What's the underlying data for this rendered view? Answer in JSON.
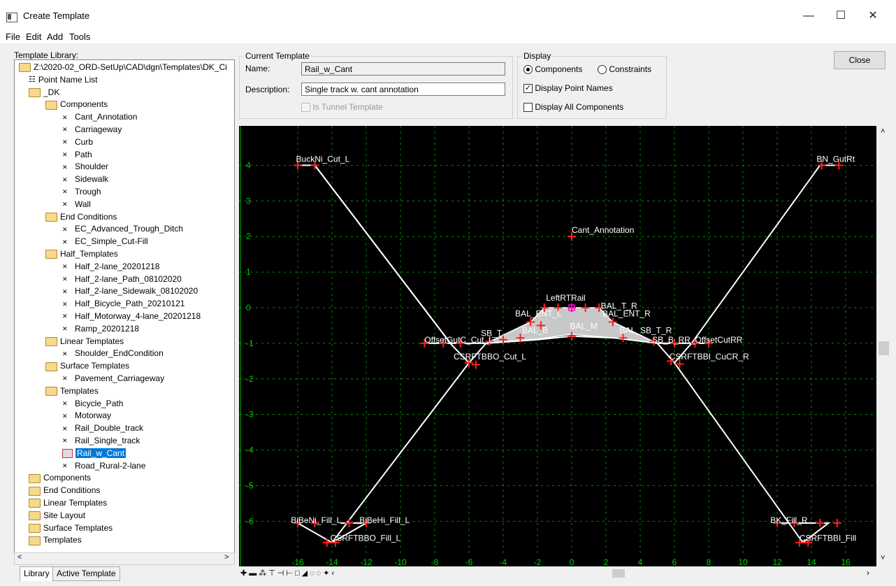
{
  "window": {
    "title": "Create Template",
    "controls": {
      "minimize": "—",
      "maximize": "☐",
      "close": "✕"
    }
  },
  "menu": [
    "File",
    "Edit",
    "Add",
    "Tools"
  ],
  "library": {
    "label": "Template Library:",
    "tree": [
      {
        "text": "Z:\\2020-02_ORD-SetUp\\CAD\\dgn\\Templates\\DK_Ci",
        "kind": "folder",
        "level": 0
      },
      {
        "text": "Point Name List",
        "kind": "list",
        "level": 1
      },
      {
        "text": "_DK",
        "kind": "folder",
        "level": 1
      },
      {
        "text": "Components",
        "kind": "folder",
        "level": 2
      },
      {
        "text": "Cant_Annotation",
        "kind": "comp",
        "level": 3
      },
      {
        "text": "Carriageway",
        "kind": "comp",
        "level": 3
      },
      {
        "text": "Curb",
        "kind": "comp",
        "level": 3
      },
      {
        "text": "Path",
        "kind": "comp",
        "level": 3
      },
      {
        "text": "Shoulder",
        "kind": "comp",
        "level": 3
      },
      {
        "text": "Sidewalk",
        "kind": "comp",
        "level": 3
      },
      {
        "text": "Trough",
        "kind": "comp",
        "level": 3
      },
      {
        "text": "Wall",
        "kind": "comp",
        "level": 3
      },
      {
        "text": "End Conditions",
        "kind": "folder",
        "level": 2
      },
      {
        "text": "EC_Advanced_Trough_Ditch",
        "kind": "comp",
        "level": 3
      },
      {
        "text": "EC_Simple_Cut-Fill",
        "kind": "comp",
        "level": 3
      },
      {
        "text": "Half_Templates",
        "kind": "folder",
        "level": 2
      },
      {
        "text": "Half_2-lane_20201218",
        "kind": "comp",
        "level": 3
      },
      {
        "text": "Half_2-lane_Path_08102020",
        "kind": "comp",
        "level": 3
      },
      {
        "text": "Half_2-lane_Sidewalk_08102020",
        "kind": "comp",
        "level": 3
      },
      {
        "text": "Half_Bicycle_Path_20210121",
        "kind": "comp",
        "level": 3
      },
      {
        "text": "Half_Motorway_4-lane_20201218",
        "kind": "comp",
        "level": 3
      },
      {
        "text": "Ramp_20201218",
        "kind": "comp",
        "level": 3
      },
      {
        "text": "Linear Templates",
        "kind": "folder",
        "level": 2
      },
      {
        "text": "Shoulder_EndCondition",
        "kind": "comp",
        "level": 3
      },
      {
        "text": "Surface Templates",
        "kind": "folder",
        "level": 2
      },
      {
        "text": "Pavement_Carriageway",
        "kind": "comp",
        "level": 3
      },
      {
        "text": "Templates",
        "kind": "folder",
        "level": 2
      },
      {
        "text": "Bicycle_Path",
        "kind": "comp",
        "level": 3
      },
      {
        "text": "Motorway",
        "kind": "comp",
        "level": 3
      },
      {
        "text": "Rail_Double_track",
        "kind": "comp",
        "level": 3
      },
      {
        "text": "Rail_Single_track",
        "kind": "comp",
        "level": 3
      },
      {
        "text": "Rail_w_Cant",
        "kind": "template-selected",
        "level": 3
      },
      {
        "text": "Road_Rural-2-lane",
        "kind": "comp",
        "level": 3
      },
      {
        "text": "Components",
        "kind": "folder",
        "level": 1
      },
      {
        "text": "End Conditions",
        "kind": "folder",
        "level": 1
      },
      {
        "text": "Linear Templates",
        "kind": "folder",
        "level": 1
      },
      {
        "text": "Site Layout",
        "kind": "folder",
        "level": 1
      },
      {
        "text": "Surface Templates",
        "kind": "folder",
        "level": 1
      },
      {
        "text": "Templates",
        "kind": "folder",
        "level": 1
      }
    ],
    "tabs": [
      "Library",
      "Active Template"
    ]
  },
  "current_template": {
    "group_title": "Current Template",
    "name_label": "Name:",
    "name_value": "Rail_w_Cant",
    "desc_label": "Description:",
    "desc_value": "Single track w. cant annotation",
    "tunnel_label": "Is Tunnel Template"
  },
  "display": {
    "group_title": "Display",
    "components_label": "Components",
    "constraints_label": "Constraints",
    "point_names_label": "Display Point Names",
    "all_components_label": "Display All Components"
  },
  "close_label": "Close",
  "viewer": {
    "x_ticks": [
      -16,
      -14,
      -12,
      -10,
      -8,
      -6,
      -4,
      -2,
      0,
      2,
      4,
      6,
      8,
      10,
      12,
      14,
      16
    ],
    "y_ticks": [
      4,
      3,
      2,
      1,
      0,
      -1,
      -2,
      -3,
      -4,
      -5,
      -6
    ],
    "labels": [
      {
        "text": "BuckNi_Cut_L",
        "x": -16.1,
        "y": 4.1
      },
      {
        "text": "BN_GutRt",
        "x": 14.3,
        "y": 4.1
      },
      {
        "text": "Cant_Annotation",
        "x": 0,
        "y": 2.1
      },
      {
        "text": "LeftRTRail",
        "x": -1.5,
        "y": 0.2
      },
      {
        "text": "BAL_T_R",
        "x": 1.7,
        "y": -0.03
      },
      {
        "text": "BAL_ENT_L",
        "x": -3.3,
        "y": -0.25
      },
      {
        "text": "BAL_ENT_R",
        "x": 1.8,
        "y": -0.25
      },
      {
        "text": "BAL_M",
        "x": -0.1,
        "y": -0.6
      },
      {
        "text": "SB_T",
        "x": -5.3,
        "y": -0.8
      },
      {
        "text": "BAL_B",
        "x": -2.9,
        "y": -0.72
      },
      {
        "text": "BAL_SB_T_R",
        "x": 2.8,
        "y": -0.72
      },
      {
        "text": "OffsetGutC_Cut_L",
        "x": -8.6,
        "y": -0.98
      },
      {
        "text": "SB_B_RR_OffsetCutRR",
        "x": 4.7,
        "y": -0.98
      },
      {
        "text": "CSRFTBBO_Cut_L",
        "x": -6.9,
        "y": -1.45
      },
      {
        "text": "CSRFTBBI_CuCR_R",
        "x": 5.7,
        "y": -1.45
      },
      {
        "text": "BiBeNi_Fill_L",
        "x": -16.4,
        "y": -6.05
      },
      {
        "text": "BiBeHi_Fill_L",
        "x": -12.4,
        "y": -6.05
      },
      {
        "text": "BK_Fill_R",
        "x": 11.6,
        "y": -6.05
      },
      {
        "text": "CSRFTBBO_Fill_L",
        "x": -14.1,
        "y": -6.55
      },
      {
        "text": "CSRFTBBI_Fill",
        "x": 13.3,
        "y": -6.55
      }
    ],
    "toolbar": [
      "✚",
      "▬",
      "⁂",
      "⊤",
      "⊣",
      "⊢",
      "□",
      "◢",
      "◌",
      "◌",
      "✦",
      "‹"
    ]
  }
}
